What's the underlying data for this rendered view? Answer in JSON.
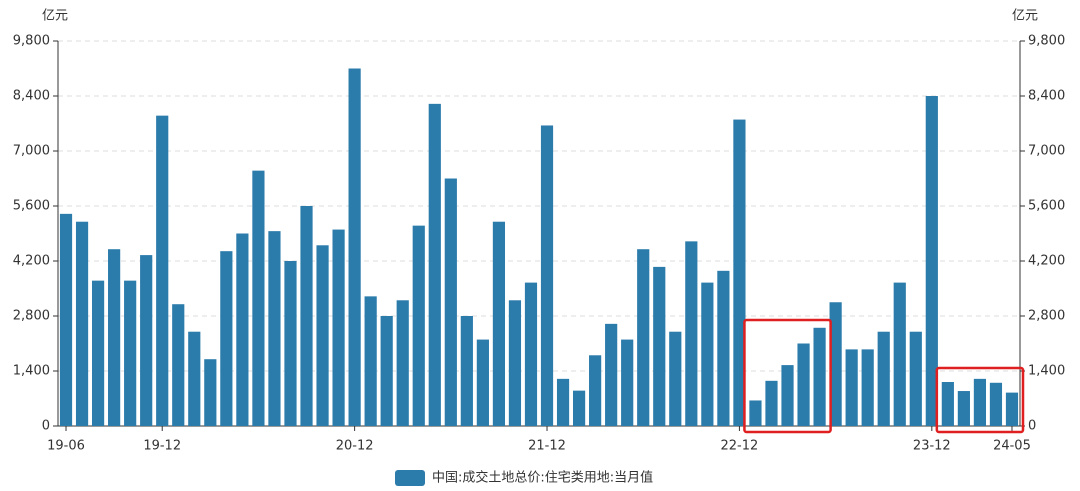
{
  "chart_data": {
    "type": "bar",
    "y_unit": "亿元",
    "y2_unit": "亿元",
    "categories": [
      "19-06",
      null,
      null,
      null,
      null,
      null,
      "19-12",
      null,
      null,
      null,
      null,
      null,
      null,
      null,
      null,
      null,
      null,
      null,
      "20-12",
      null,
      null,
      null,
      null,
      null,
      null,
      null,
      null,
      null,
      null,
      null,
      "21-12",
      null,
      null,
      null,
      null,
      null,
      null,
      null,
      null,
      null,
      null,
      null,
      "22-12",
      null,
      null,
      null,
      null,
      null,
      null,
      null,
      null,
      null,
      null,
      null,
      "23-12",
      null,
      null,
      null,
      null,
      "24-05"
    ],
    "series": [
      {
        "name": "中国:成交土地总价:住宅类用地:当月值",
        "color": "#2b7bab",
        "values": [
          5400,
          5200,
          3700,
          4500,
          3700,
          4350,
          7900,
          3100,
          2400,
          1700,
          4450,
          4900,
          6500,
          4960,
          4200,
          5600,
          4600,
          5000,
          9100,
          3300,
          2800,
          3200,
          5100,
          8200,
          6300,
          2800,
          2200,
          5200,
          3200,
          3650,
          7650,
          1200,
          900,
          1800,
          2600,
          2200,
          4500,
          4050,
          2400,
          4700,
          3650,
          3950,
          7800,
          650,
          1150,
          1550,
          2100,
          2500,
          3150,
          1950,
          1950,
          2400,
          3650,
          2400,
          8400,
          1120,
          890,
          1200,
          1100,
          850
        ]
      }
    ],
    "ylim": [
      0,
      9800
    ],
    "yticks": [
      0,
      {
        "value": 1400,
        "label": "1,400"
      },
      {
        "value": 2800,
        "label": "2,800"
      },
      {
        "value": 4200,
        "label": "4,200"
      },
      {
        "value": 5600,
        "label": "5,600"
      },
      {
        "value": 7000,
        "label": "7,000"
      },
      {
        "value": 8400,
        "label": "8,400"
      },
      {
        "value": 9800,
        "label": "9,800"
      }
    ],
    "y2lim": [
      0,
      9800
    ],
    "y2ticks": [
      0,
      {
        "value": 1400,
        "label": "1,400"
      },
      {
        "value": 2800,
        "label": "2,800"
      },
      {
        "value": 4200,
        "label": "4,200"
      },
      {
        "value": 5600,
        "label": "5,600"
      },
      {
        "value": 7000,
        "label": "7,000"
      },
      {
        "value": 8400,
        "label": "8,400"
      },
      {
        "value": 9800,
        "label": "9,800"
      }
    ],
    "grid": true,
    "legend": "bottom"
  }
}
